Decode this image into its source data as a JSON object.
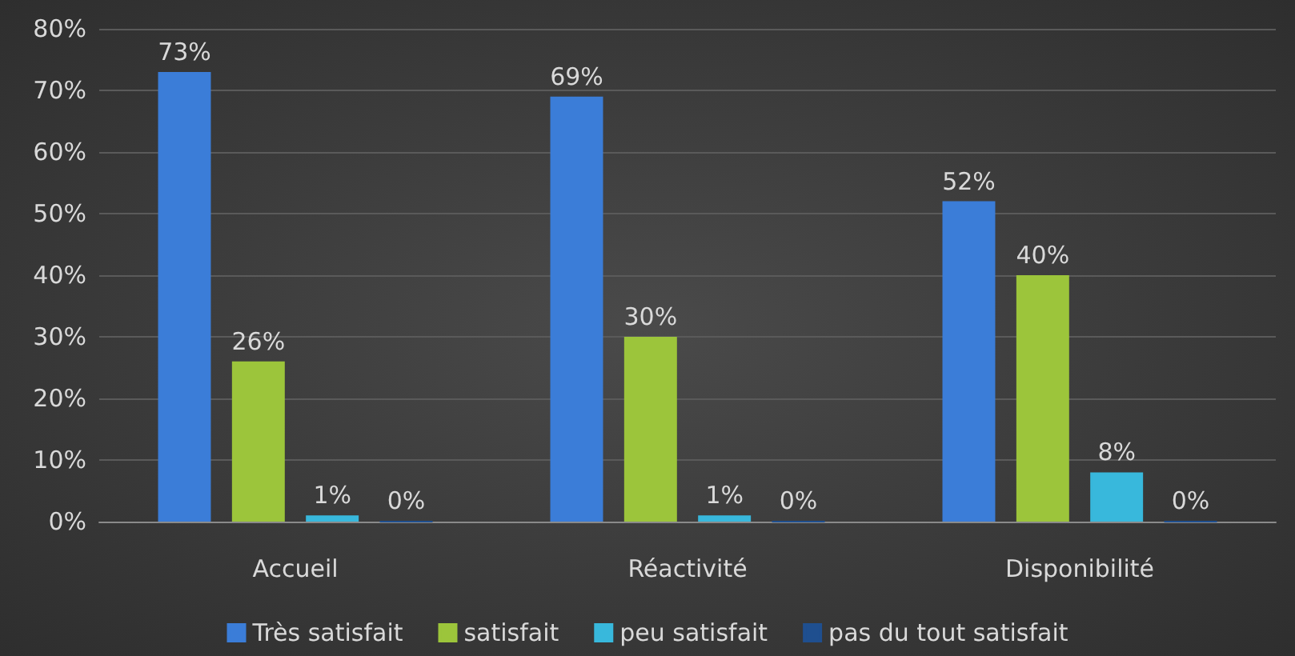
{
  "chart_data": {
    "type": "bar",
    "categories": [
      "Accueil",
      "Réactivité",
      "Disponibilité"
    ],
    "series": [
      {
        "name": "Très satisfait",
        "color": "#3b7dd8",
        "values": [
          73,
          69,
          52
        ],
        "value_labels": [
          "73%",
          "69%",
          "52%"
        ]
      },
      {
        "name": "satisfait",
        "color": "#9cc53b",
        "values": [
          26,
          30,
          40
        ],
        "value_labels": [
          "26%",
          "30%",
          "40%"
        ]
      },
      {
        "name": "peu satisfait",
        "color": "#38b8dc",
        "values": [
          1,
          1,
          8
        ],
        "value_labels": [
          "1%",
          "1%",
          "8%"
        ]
      },
      {
        "name": "pas du tout satisfait",
        "color": "#1f4f8f",
        "values": [
          0,
          0,
          0
        ],
        "value_labels": [
          "0%",
          "0%",
          "0%"
        ]
      }
    ],
    "ylim": [
      0,
      80
    ],
    "yticks": [
      {
        "value": 0,
        "label": "0%"
      },
      {
        "value": 10,
        "label": "10%"
      },
      {
        "value": 20,
        "label": "20%"
      },
      {
        "value": 30,
        "label": "30%"
      },
      {
        "value": 40,
        "label": "40%"
      },
      {
        "value": 50,
        "label": "50%"
      },
      {
        "value": 60,
        "label": "60%"
      },
      {
        "value": 70,
        "label": "70%"
      },
      {
        "value": 80,
        "label": "80%"
      }
    ],
    "grid": "y",
    "legend": "bottom"
  }
}
